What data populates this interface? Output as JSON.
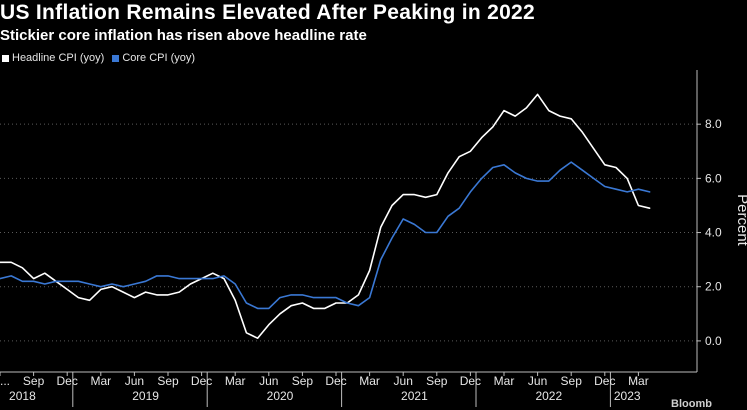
{
  "title": "US Inflation Remains Elevated After Peaking in 2022",
  "subtitle": "Stickier core inflation has risen above headline rate",
  "legend": {
    "headline": {
      "label": "Headline CPI (yoy)",
      "color": "#ffffff"
    },
    "core": {
      "label": "Core CPI (yoy)",
      "color": "#3a78d4"
    }
  },
  "source_fragment": "Bloomb",
  "chart_data": {
    "type": "line",
    "title": "US Inflation Remains Elevated After Peaking in 2022",
    "subtitle": "Stickier core inflation has risen above headline rate",
    "xlabel": "",
    "ylabel": "Percent",
    "ylim": [
      -1.0,
      10.0
    ],
    "yticks": [
      0.0,
      2.0,
      4.0,
      6.0,
      8.0
    ],
    "ytick_labels": [
      "0.0",
      "2.0",
      "4.0",
      "6.0",
      "8.0"
    ],
    "yaxis_side": "right",
    "grid": true,
    "legend_position": "top-left",
    "x_start": "2018-06",
    "x": [
      "2018-06",
      "2018-07",
      "2018-08",
      "2018-09",
      "2018-10",
      "2018-11",
      "2018-12",
      "2019-01",
      "2019-02",
      "2019-03",
      "2019-04",
      "2019-05",
      "2019-06",
      "2019-07",
      "2019-08",
      "2019-09",
      "2019-10",
      "2019-11",
      "2019-12",
      "2020-01",
      "2020-02",
      "2020-03",
      "2020-04",
      "2020-05",
      "2020-06",
      "2020-07",
      "2020-08",
      "2020-09",
      "2020-10",
      "2020-11",
      "2020-12",
      "2021-01",
      "2021-02",
      "2021-03",
      "2021-04",
      "2021-05",
      "2021-06",
      "2021-07",
      "2021-08",
      "2021-09",
      "2021-10",
      "2021-11",
      "2021-12",
      "2022-01",
      "2022-02",
      "2022-03",
      "2022-04",
      "2022-05",
      "2022-06",
      "2022-07",
      "2022-08",
      "2022-09",
      "2022-10",
      "2022-11",
      "2022-12",
      "2023-01",
      "2023-02",
      "2023-03",
      "2023-04"
    ],
    "x_tick_labels": [
      {
        "month": "2018-06",
        "label": "..."
      },
      {
        "month": "2018-09",
        "label": "Sep"
      },
      {
        "month": "2018-12",
        "label": "Dec"
      },
      {
        "month": "2019-03",
        "label": "Mar"
      },
      {
        "month": "2019-06",
        "label": "Jun"
      },
      {
        "month": "2019-09",
        "label": "Sep"
      },
      {
        "month": "2019-12",
        "label": "Dec"
      },
      {
        "month": "2020-03",
        "label": "Mar"
      },
      {
        "month": "2020-06",
        "label": "Jun"
      },
      {
        "month": "2020-09",
        "label": "Sep"
      },
      {
        "month": "2020-12",
        "label": "Dec"
      },
      {
        "month": "2021-03",
        "label": "Mar"
      },
      {
        "month": "2021-06",
        "label": "Jun"
      },
      {
        "month": "2021-09",
        "label": "Sep"
      },
      {
        "month": "2021-12",
        "label": "Dec"
      },
      {
        "month": "2022-03",
        "label": "Mar"
      },
      {
        "month": "2022-06",
        "label": "Jun"
      },
      {
        "month": "2022-09",
        "label": "Sep"
      },
      {
        "month": "2022-12",
        "label": "Dec"
      },
      {
        "month": "2023-03",
        "label": "Mar"
      }
    ],
    "year_labels": [
      {
        "label": "2018",
        "month": "2018-08"
      },
      {
        "label": "2019",
        "month": "2019-07"
      },
      {
        "label": "2020",
        "month": "2020-07"
      },
      {
        "label": "2021",
        "month": "2021-07"
      },
      {
        "label": "2022",
        "month": "2022-07"
      },
      {
        "label": "2023",
        "month": "2023-02"
      }
    ],
    "series": [
      {
        "name": "Headline CPI (yoy)",
        "color": "#ffffff",
        "values": [
          2.9,
          2.9,
          2.7,
          2.3,
          2.5,
          2.2,
          1.9,
          1.6,
          1.5,
          1.9,
          2.0,
          1.8,
          1.6,
          1.8,
          1.7,
          1.7,
          1.8,
          2.1,
          2.3,
          2.5,
          2.3,
          1.5,
          0.3,
          0.1,
          0.6,
          1.0,
          1.3,
          1.4,
          1.2,
          1.2,
          1.4,
          1.4,
          1.7,
          2.6,
          4.2,
          5.0,
          5.4,
          5.4,
          5.3,
          5.4,
          6.2,
          6.8,
          7.0,
          7.5,
          7.9,
          8.5,
          8.3,
          8.6,
          9.1,
          8.5,
          8.3,
          8.2,
          7.7,
          7.1,
          6.5,
          6.4,
          6.0,
          5.0,
          4.9
        ]
      },
      {
        "name": "Core CPI (yoy)",
        "color": "#3a78d4",
        "values": [
          2.3,
          2.4,
          2.2,
          2.2,
          2.1,
          2.2,
          2.2,
          2.2,
          2.1,
          2.0,
          2.1,
          2.0,
          2.1,
          2.2,
          2.4,
          2.4,
          2.3,
          2.3,
          2.3,
          2.3,
          2.4,
          2.1,
          1.4,
          1.2,
          1.2,
          1.6,
          1.7,
          1.7,
          1.6,
          1.6,
          1.6,
          1.4,
          1.3,
          1.6,
          3.0,
          3.8,
          4.5,
          4.3,
          4.0,
          4.0,
          4.6,
          4.9,
          5.5,
          6.0,
          6.4,
          6.5,
          6.2,
          6.0,
          5.9,
          5.9,
          6.3,
          6.6,
          6.3,
          6.0,
          5.7,
          5.6,
          5.5,
          5.6,
          5.5
        ]
      }
    ]
  }
}
